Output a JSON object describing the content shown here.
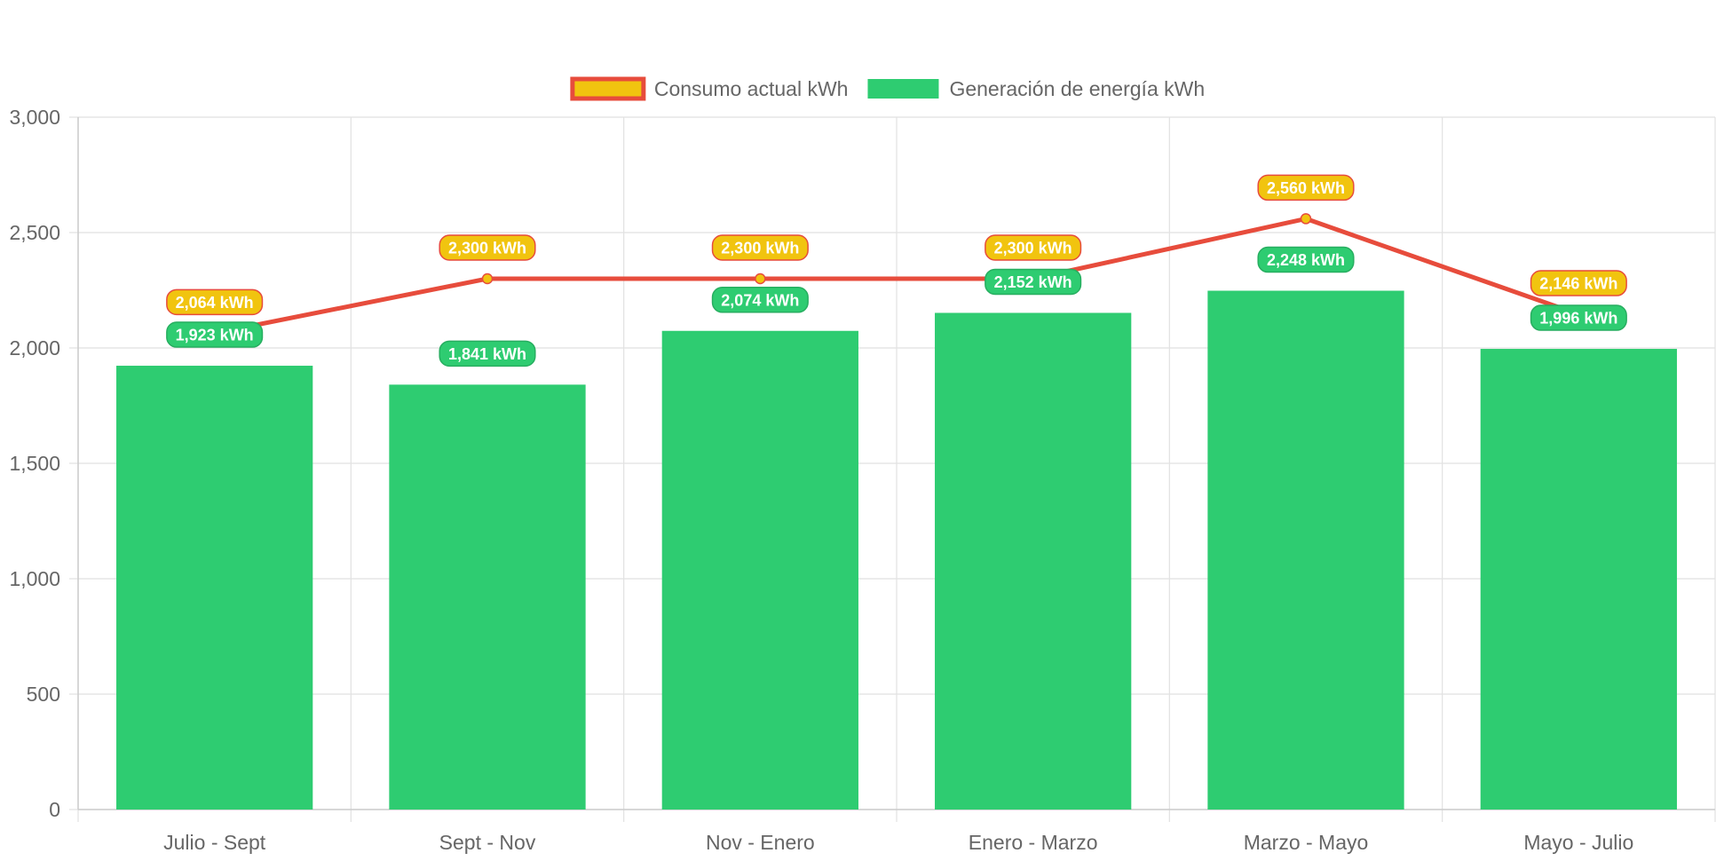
{
  "chart_data": {
    "type": "bar",
    "categories": [
      "Julio - Sept",
      "Sept - Nov",
      "Nov - Enero",
      "Enero - Marzo",
      "Marzo - Mayo",
      "Mayo - Julio"
    ],
    "series": [
      {
        "name": "Consumo actual kWh",
        "type": "line",
        "values": [
          2064,
          2300,
          2300,
          2300,
          2560,
          2146
        ],
        "labels": [
          "2,064 kWh",
          "2,300 kWh",
          "2,300 kWh",
          "2,300 kWh",
          "2,560 kWh",
          "2,146 kWh"
        ],
        "color": "#e74c3c",
        "fill_color": "#f1c40f"
      },
      {
        "name": "Generación de energía kWh",
        "type": "bar",
        "values": [
          1923,
          1841,
          2074,
          2152,
          2248,
          1996
        ],
        "labels": [
          "1,923 kWh",
          "1,841 kWh",
          "2,074 kWh",
          "2,152 kWh",
          "2,248 kWh",
          "1,996 kWh"
        ],
        "color": "#2ecc71",
        "border_color": "#27ae60"
      }
    ],
    "y_ticks": [
      "0",
      "500",
      "1,000",
      "1,500",
      "2,000",
      "2,500",
      "3,000"
    ],
    "ylim": [
      0,
      3000
    ],
    "grid": true,
    "legend_position": "top"
  }
}
